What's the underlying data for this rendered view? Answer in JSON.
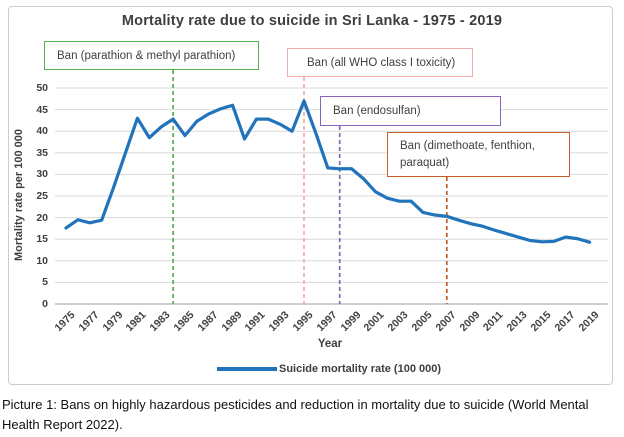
{
  "chart": {
    "title": "Mortality rate due to suicide in Sri Lanka - 1975 - 2019",
    "xlabel": "Year",
    "ylabel": "Mortality rate  per 100 000",
    "legend_label": "Suicide mortality rate (100 000)"
  },
  "chart_data": {
    "type": "line",
    "title": "Mortality rate due to suicide in Sri Lanka - 1975 - 2019",
    "xlabel": "Year",
    "ylabel": "Mortality rate  per 100 000",
    "x": [
      1975,
      1976,
      1977,
      1978,
      1979,
      1980,
      1981,
      1982,
      1983,
      1984,
      1985,
      1986,
      1987,
      1988,
      1989,
      1990,
      1991,
      1992,
      1993,
      1994,
      1995,
      1996,
      1997,
      1998,
      1999,
      2000,
      2001,
      2002,
      2003,
      2004,
      2005,
      2006,
      2007,
      2008,
      2009,
      2010,
      2011,
      2012,
      2013,
      2014,
      2015,
      2016,
      2017,
      2018,
      2019
    ],
    "series": [
      {
        "name": "Suicide mortality rate (100 000)",
        "color": "#2173BC",
        "values": [
          17.6,
          19.5,
          18.8,
          19.4,
          27,
          35,
          43,
          38.5,
          41,
          42.8,
          39,
          42.3,
          44,
          45.2,
          46,
          38.2,
          42.8,
          42.8,
          41.6,
          40,
          47,
          39.5,
          31.5,
          31.3,
          31.3,
          29,
          26,
          24.5,
          23.8,
          23.8,
          21.2,
          20.6,
          20.3,
          19.4,
          18.6,
          18,
          17.1,
          16.3,
          15.5,
          14.7,
          14.4,
          14.5,
          15.5,
          15.1,
          14.3
        ]
      }
    ],
    "ylim": [
      0,
      50
    ],
    "ytick_step": 5,
    "xticks": [
      1975,
      1977,
      1979,
      1981,
      1983,
      1985,
      1987,
      1989,
      1991,
      1993,
      1995,
      1997,
      1999,
      2001,
      2003,
      2005,
      2007,
      2009,
      2011,
      2013,
      2015,
      2017,
      2019
    ],
    "grid": true,
    "legend_position": "bottom",
    "annotations": [
      {
        "label": "Ban (parathion & methyl parathion)",
        "year": 1984,
        "color": "#55B04E"
      },
      {
        "label": "Ban (all WHO class I toxicity)",
        "year": 1995,
        "color": "#F2ABAB"
      },
      {
        "label": "Ban (endosulfan)",
        "year": 1998,
        "color": "#8A63BF"
      },
      {
        "label": "Ban (dimethoate, fenthion, paraquat)",
        "year": 2007,
        "color": "#C75B28"
      }
    ],
    "colors": {
      "line": "#2173BC",
      "grid": "#D9D9D9",
      "axis": "#BFBFBF",
      "text": "#404040"
    }
  },
  "caption": "Picture 1: Bans on highly hazardous pesticides and reduction in mortality due to suicide (World Mental Health Report 2022)."
}
